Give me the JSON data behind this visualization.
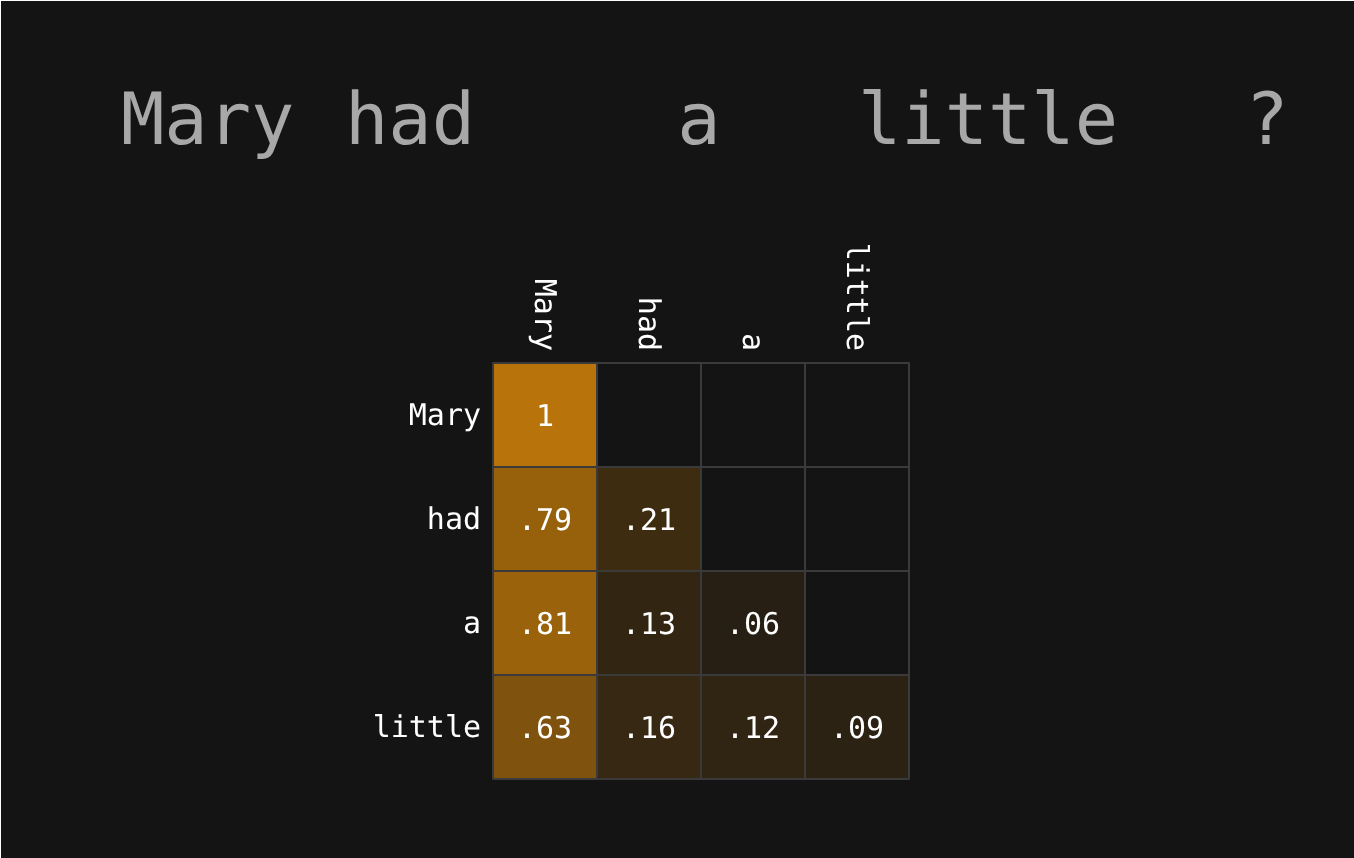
{
  "chart_data": {
    "type": "heatmap",
    "title": "Mary had a little ?",
    "categories": [
      "Mary",
      "had",
      "a",
      "little"
    ],
    "y_categories": [
      "Mary",
      "had",
      "a",
      "little"
    ],
    "cells": [
      [
        1,
        null,
        null,
        null
      ],
      [
        0.79,
        0.21,
        null,
        null
      ],
      [
        0.81,
        0.13,
        0.06,
        null
      ],
      [
        0.63,
        0.16,
        0.12,
        0.09
      ]
    ],
    "cell_labels": [
      [
        "1",
        null,
        null,
        null
      ],
      [
        ".79",
        ".21",
        null,
        null
      ],
      [
        ".81",
        ".13",
        ".06",
        null
      ],
      [
        ".63",
        ".16",
        ".12",
        ".09"
      ]
    ]
  }
}
